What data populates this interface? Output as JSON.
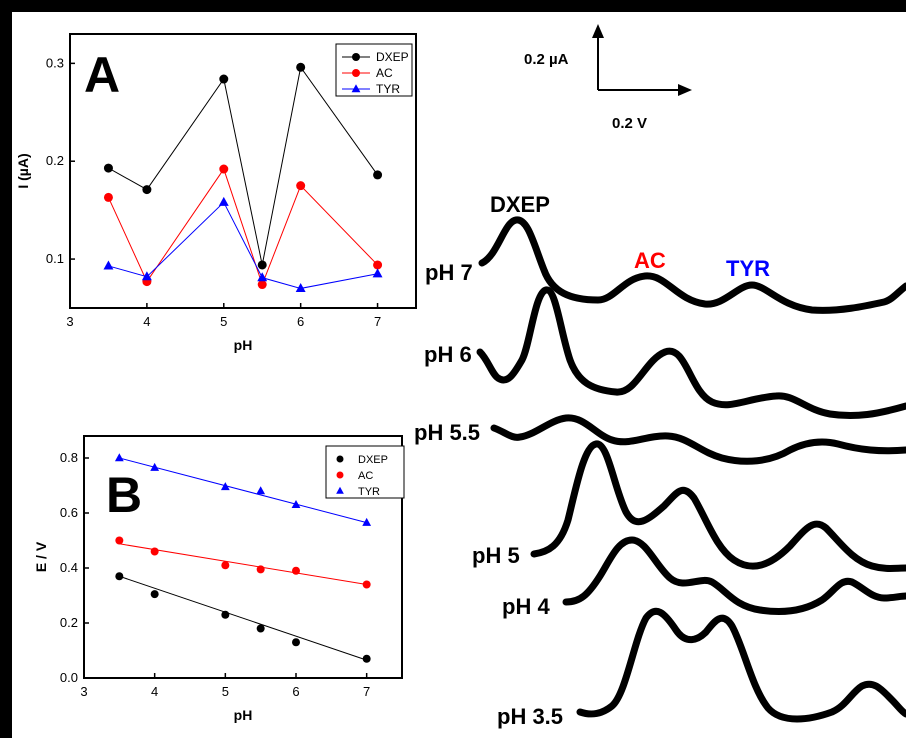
{
  "figure_border_color": "#000000",
  "colors": {
    "DXEP": "#000000",
    "AC": "#ff0000",
    "TYR": "#0000ff"
  },
  "scale_bar": {
    "current_label": "0.2 µA",
    "potential_label": "0.2 V"
  },
  "curve_labels": {
    "DXEP": "DXEP",
    "AC": "AC",
    "TYR": "TYR",
    "traces": [
      "pH 7",
      "pH 6",
      "pH 5.5",
      "pH 5",
      "pH 4",
      "pH 3.5"
    ]
  },
  "chart_data": [
    {
      "type": "line",
      "panel_label": "A",
      "xlabel": "pH",
      "ylabel": "I (µA)",
      "xlim": [
        3,
        7.5
      ],
      "ylim": [
        0.05,
        0.33
      ],
      "xticks": [
        3,
        4,
        5,
        6,
        7
      ],
      "yticks": [
        0.1,
        0.2,
        0.3
      ],
      "legend_position": "top-right",
      "x": [
        3.5,
        4,
        5,
        5.5,
        6,
        7
      ],
      "series": [
        {
          "name": "DXEP",
          "color": "#000000",
          "marker": "circle",
          "values": [
            0.193,
            0.171,
            0.284,
            0.094,
            0.296,
            0.186
          ]
        },
        {
          "name": "AC",
          "color": "#ff0000",
          "marker": "circle",
          "values": [
            0.163,
            0.077,
            0.192,
            0.074,
            0.175,
            0.094
          ]
        },
        {
          "name": "TYR",
          "color": "#0000ff",
          "marker": "triangle",
          "values": [
            0.093,
            0.082,
            0.158,
            0.081,
            0.07,
            0.085
          ]
        }
      ]
    },
    {
      "type": "scatter",
      "panel_label": "B",
      "xlabel": "pH",
      "ylabel": "E / V",
      "xlim": [
        3,
        7.5
      ],
      "ylim": [
        0.0,
        0.88
      ],
      "xticks": [
        3,
        4,
        5,
        6,
        7
      ],
      "yticks": [
        0.0,
        0.2,
        0.4,
        0.6,
        0.8
      ],
      "legend_position": "top-right",
      "x": [
        3.5,
        4,
        5,
        5.5,
        6,
        7
      ],
      "series": [
        {
          "name": "DXEP",
          "color": "#000000",
          "marker": "circle",
          "values": [
            0.37,
            0.305,
            0.23,
            0.18,
            0.13,
            0.07
          ],
          "fit": [
            0.37,
            0.065
          ]
        },
        {
          "name": "AC",
          "color": "#ff0000",
          "marker": "circle",
          "values": [
            0.5,
            0.46,
            0.41,
            0.395,
            0.39,
            0.34
          ],
          "fit": [
            0.488,
            0.34
          ]
        },
        {
          "name": "TYR",
          "color": "#0000ff",
          "marker": "triangle",
          "values": [
            0.8,
            0.765,
            0.695,
            0.68,
            0.63,
            0.565
          ],
          "fit": [
            0.8,
            0.565
          ]
        }
      ]
    }
  ]
}
